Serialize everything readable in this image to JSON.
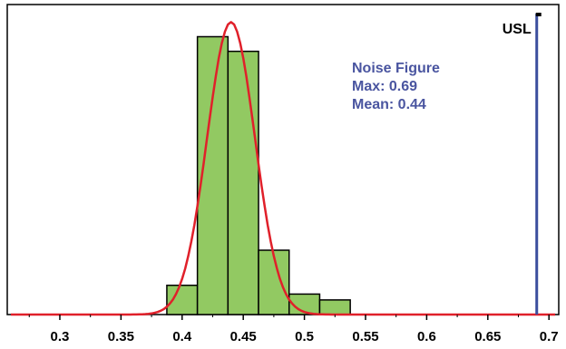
{
  "chart_data": {
    "type": "bar",
    "title": "",
    "xlabel": "",
    "ylabel": "",
    "xlim": [
      0.257,
      0.708
    ],
    "ylim": [
      0,
      1.06
    ],
    "grid": false,
    "x_ticks": [
      0.3,
      0.35,
      0.4,
      0.45,
      0.5,
      0.55,
      0.6,
      0.65,
      0.7
    ],
    "x_tick_labels": [
      "0.3",
      "0.35",
      "0.4",
      "0.45",
      "0.5",
      "0.55",
      "0.6",
      "0.65",
      "0.7"
    ],
    "bin_width": 0.025,
    "bins": [
      {
        "start": 0.3875,
        "end": 0.4125,
        "value": 0.1
      },
      {
        "start": 0.4125,
        "end": 0.4375,
        "value": 0.95
      },
      {
        "start": 0.4375,
        "end": 0.4625,
        "value": 0.9
      },
      {
        "start": 0.4625,
        "end": 0.4875,
        "value": 0.22
      },
      {
        "start": 0.4875,
        "end": 0.5125,
        "value": 0.07
      },
      {
        "start": 0.5125,
        "end": 0.5375,
        "value": 0.05
      }
    ],
    "curve": {
      "mean": 0.44,
      "sd": 0.0195,
      "peak": 1.0
    },
    "usl": {
      "x": 0.69,
      "label": "USL"
    },
    "annotation": {
      "lines": [
        "Noise Figure",
        "Max: 0.69",
        "Mean: 0.44"
      ]
    },
    "colors": {
      "bar_fill": "#92c962",
      "bar_stroke": "#000000",
      "curve": "#e0202a",
      "usl": "#3b4e9e",
      "annotation": "#4a55a0"
    }
  }
}
